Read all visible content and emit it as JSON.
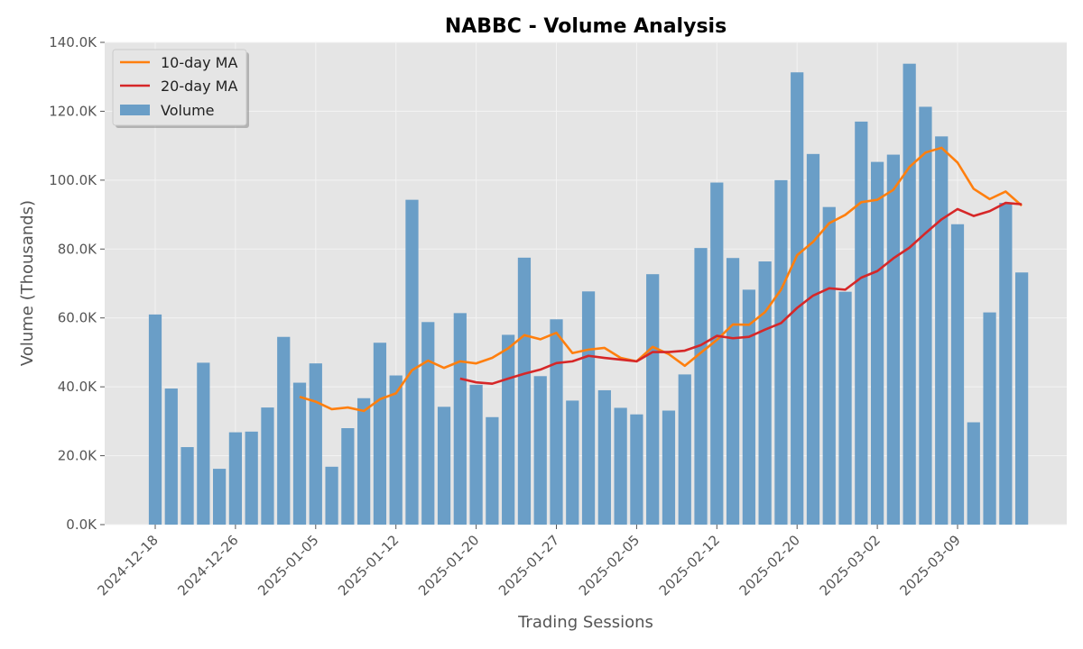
{
  "chart_data": {
    "type": "bar",
    "title": "NABBC - Volume Analysis",
    "xlabel": "Trading Sessions",
    "ylabel": "Volume (Thousands)",
    "ylim": [
      0,
      140000
    ],
    "y_ticks": [
      0,
      20000,
      40000,
      60000,
      80000,
      100000,
      120000,
      140000
    ],
    "y_tick_labels": [
      "0.0K",
      "20.0K",
      "40.0K",
      "60.0K",
      "80.0K",
      "100.0K",
      "120.0K",
      "140.0K"
    ],
    "x_tick_labels": [
      {
        "index": 0,
        "label": "2024-12-18"
      },
      {
        "index": 5,
        "label": "2024-12-26"
      },
      {
        "index": 10,
        "label": "2025-01-05"
      },
      {
        "index": 15,
        "label": "2025-01-12"
      },
      {
        "index": 20,
        "label": "2025-01-20"
      },
      {
        "index": 25,
        "label": "2025-01-27"
      },
      {
        "index": 30,
        "label": "2025-02-05"
      },
      {
        "index": 35,
        "label": "2025-02-12"
      },
      {
        "index": 40,
        "label": "2025-02-20"
      },
      {
        "index": 45,
        "label": "2025-03-02"
      },
      {
        "index": 50,
        "label": "2025-03-09"
      }
    ],
    "grid": true,
    "legend_position": "top-left",
    "colors": {
      "background": "#e5e5e5",
      "grid": "#f3f3f3",
      "volume": "#6a9ec7",
      "ma10": "#ff7f0e",
      "ma20": "#d62728"
    },
    "series": [
      {
        "name": "Volume",
        "type": "bar",
        "values": [
          61000,
          39500,
          22500,
          47000,
          16200,
          26800,
          27000,
          34000,
          54500,
          41200,
          46800,
          16800,
          28000,
          36700,
          52800,
          43300,
          94300,
          58800,
          34200,
          61400,
          40600,
          31200,
          55100,
          77500,
          43100,
          59600,
          36000,
          67700,
          39000,
          33900,
          32000,
          72700,
          33100,
          43600,
          80300,
          99300,
          77400,
          68200,
          76400,
          100000,
          131300,
          107600,
          92200,
          67600,
          117000,
          105300,
          107400,
          133800,
          121300,
          112700,
          87200,
          29700,
          61600,
          93400,
          73200
        ]
      },
      {
        "name": "10-day MA",
        "type": "line",
        "start_index": 9,
        "values": [
          37100,
          35700,
          33500,
          34000,
          33000,
          36400,
          38100,
          44800,
          47600,
          45500,
          47400,
          46800,
          48400,
          51200,
          55000,
          53800,
          55700,
          49800,
          50800,
          51300,
          48400,
          47400,
          51600,
          49500,
          46100,
          49900,
          53600,
          58100,
          58000,
          61700,
          68200,
          78200,
          82100,
          87500,
          89900,
          93600,
          94300,
          97200,
          103800,
          108000,
          109400,
          105100,
          97500,
          94500,
          96700,
          92600
        ]
      },
      {
        "name": "20-day MA",
        "type": "line",
        "start_index": 19,
        "values": [
          42400,
          41300,
          40900,
          42400,
          43800,
          45000,
          46900,
          47400,
          49000,
          48400,
          47900,
          47400,
          50100,
          50100,
          50500,
          52100,
          54800,
          54100,
          54500,
          56600,
          58500,
          62900,
          66500,
          68600,
          68200,
          71700,
          73600,
          77300,
          80400,
          84600,
          88600,
          91600,
          89600,
          91000,
          93400,
          93000
        ]
      }
    ]
  }
}
